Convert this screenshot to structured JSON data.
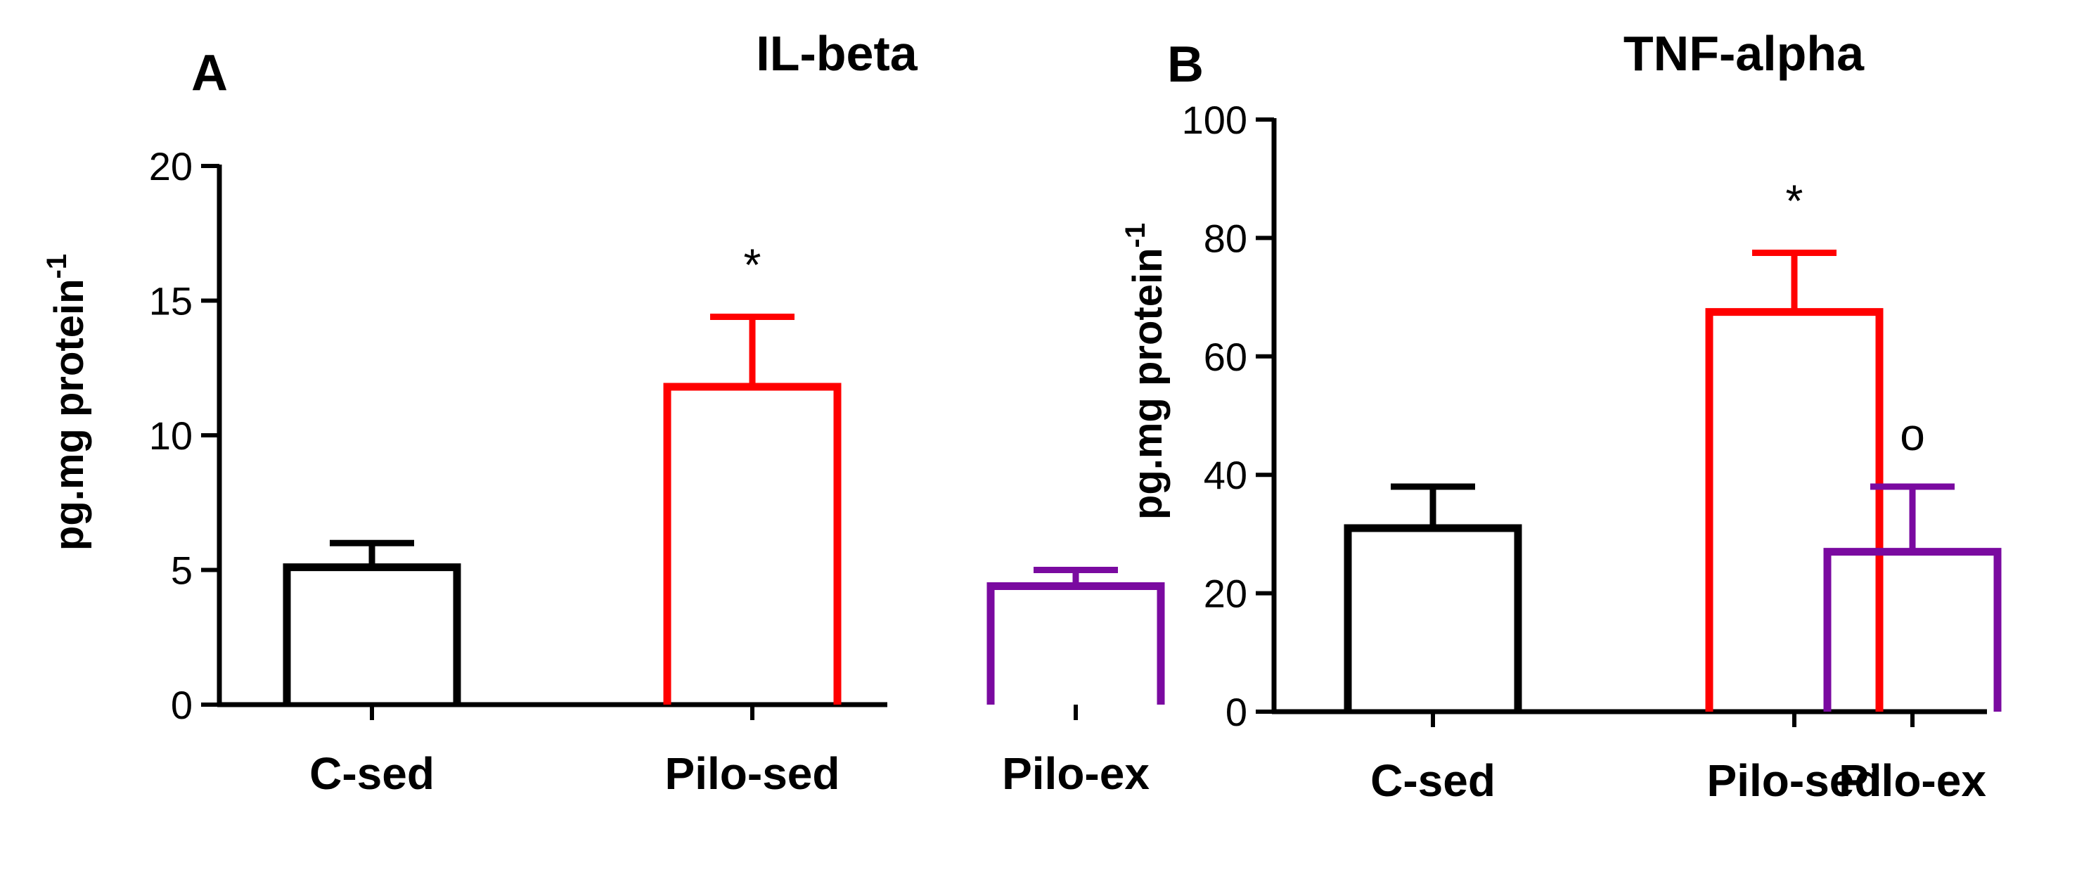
{
  "chart_data": [
    {
      "type": "bar",
      "panel_label": "A",
      "title": "IL-beta",
      "ylabel": "pg.mg protein",
      "ylabel_superscript": "-1",
      "xlabel": "",
      "categories": [
        "C-sed",
        "Pilo-sed",
        "Pilo-ex"
      ],
      "values": [
        5.1,
        11.8,
        4.4
      ],
      "errors": [
        0.9,
        2.6,
        0.6
      ],
      "colors": [
        "#000000",
        "#ff0000",
        "#7a0aa0"
      ],
      "annotations": [
        "",
        "*",
        ""
      ],
      "ylim": [
        0,
        20
      ],
      "yticks": [
        0,
        5,
        10,
        15,
        20
      ],
      "grid": false,
      "bar_fill": "none"
    },
    {
      "type": "bar",
      "panel_label": "B",
      "title": "TNF-alpha",
      "ylabel": "pg.mg protein",
      "ylabel_superscript": "-1",
      "xlabel": "",
      "categories": [
        "C-sed",
        "Pilo-sed",
        "Pilo-ex"
      ],
      "values": [
        31,
        67.5,
        27
      ],
      "errors": [
        7,
        10,
        11
      ],
      "colors": [
        "#000000",
        "#ff0000",
        "#7a0aa0"
      ],
      "annotations": [
        "",
        "*",
        "o"
      ],
      "ylim": [
        0,
        100
      ],
      "yticks": [
        0,
        20,
        40,
        60,
        80,
        100
      ],
      "grid": false,
      "bar_fill": "none"
    }
  ]
}
